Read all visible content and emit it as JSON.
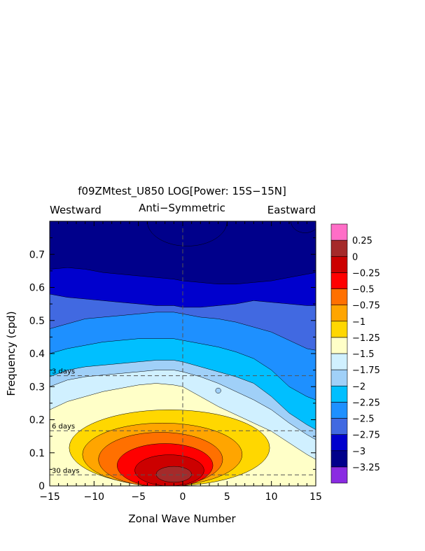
{
  "chart_data": {
    "type": "heatmap",
    "title": "f09ZMtest_U850 LOG[Power: 15S−15N]",
    "subtitle": "Anti−Symmetric",
    "left_label": "Westward",
    "right_label": "Eastward",
    "xlabel": "Zonal Wave Number",
    "ylabel": "Frequency (cpd)",
    "xlim": [
      -15,
      15
    ],
    "ylim": [
      0,
      0.8
    ],
    "xticks": [
      -15,
      -10,
      -5,
      0,
      5,
      10,
      15
    ],
    "xtick_labels": [
      "−15",
      "−10",
      "−5",
      "0",
      "5",
      "10",
      "15"
    ],
    "yticks": [
      0,
      0.1,
      0.2,
      0.3,
      0.4,
      0.5,
      0.6,
      0.7
    ],
    "ytick_labels": [
      "0",
      "0.1",
      "0.2",
      "0.3",
      "0.4",
      "0.5",
      "0.6",
      "0.7"
    ],
    "period_lines": [
      {
        "label": "3 days",
        "frequency": 0.333
      },
      {
        "label": "6 days",
        "frequency": 0.1667
      },
      {
        "label": "30 days",
        "frequency": 0.0333
      }
    ],
    "contour_levels": [
      -3.25,
      -3,
      -2.75,
      -2.5,
      -2.25,
      -2,
      -1.75,
      -1.5,
      -1.25,
      -1,
      -0.75,
      -0.5,
      -0.25,
      0,
      0.25
    ],
    "colorbar_labels": [
      "0.25",
      "0",
      "−0.25",
      "−0.5",
      "−0.75",
      "−1",
      "−1.25",
      "−1.5",
      "−1.75",
      "−2",
      "−2.25",
      "−2.5",
      "−2.75",
      "−3",
      "−3.25"
    ],
    "colors": [
      "#8a2be2",
      "#00008b",
      "#0000cd",
      "#4169e1",
      "#1e90ff",
      "#00bfff",
      "#a0d0f8",
      "#d0f0ff",
      "#ffffc8",
      "#ffd700",
      "#ffa500",
      "#ff7000",
      "#ff0000",
      "#cc0000",
      "#a52a2a",
      "#ff6ec7"
    ],
    "band_boundaries": [
      {
        "level": -1.5,
        "points": [
          [
            -15,
            0.23
          ],
          [
            -13,
            0.255
          ],
          [
            -11,
            0.27
          ],
          [
            -9,
            0.285
          ],
          [
            -7,
            0.295
          ],
          [
            -5,
            0.305
          ],
          [
            -3,
            0.31
          ],
          [
            -1,
            0.305
          ],
          [
            0,
            0.3
          ],
          [
            2,
            0.27
          ],
          [
            4,
            0.24
          ],
          [
            6,
            0.215
          ],
          [
            8,
            0.19
          ],
          [
            10,
            0.165
          ],
          [
            12,
            0.13
          ],
          [
            14,
            0.095
          ],
          [
            15,
            0.08
          ]
        ]
      },
      {
        "level": -1.75,
        "points": [
          [
            -15,
            0.3
          ],
          [
            -13,
            0.32
          ],
          [
            -11,
            0.33
          ],
          [
            -9,
            0.335
          ],
          [
            -7,
            0.34
          ],
          [
            -5,
            0.345
          ],
          [
            -3,
            0.35
          ],
          [
            -1,
            0.35
          ],
          [
            0,
            0.345
          ],
          [
            2,
            0.33
          ],
          [
            4,
            0.31
          ],
          [
            6,
            0.285
          ],
          [
            8,
            0.26
          ],
          [
            10,
            0.23
          ],
          [
            12,
            0.19
          ],
          [
            14,
            0.155
          ],
          [
            15,
            0.14
          ]
        ]
      },
      {
        "level": -2,
        "points": [
          [
            -15,
            0.33
          ],
          [
            -13,
            0.35
          ],
          [
            -11,
            0.36
          ],
          [
            -9,
            0.365
          ],
          [
            -7,
            0.37
          ],
          [
            -5,
            0.375
          ],
          [
            -3,
            0.38
          ],
          [
            -1,
            0.38
          ],
          [
            0,
            0.375
          ],
          [
            2,
            0.36
          ],
          [
            4,
            0.345
          ],
          [
            6,
            0.33
          ],
          [
            8,
            0.31
          ],
          [
            10,
            0.27
          ],
          [
            12,
            0.22
          ],
          [
            14,
            0.185
          ],
          [
            15,
            0.17
          ]
        ]
      },
      {
        "level": -2.25,
        "points": [
          [
            -15,
            0.4
          ],
          [
            -13,
            0.415
          ],
          [
            -11,
            0.425
          ],
          [
            -9,
            0.435
          ],
          [
            -7,
            0.44
          ],
          [
            -5,
            0.445
          ],
          [
            -3,
            0.445
          ],
          [
            -1,
            0.445
          ],
          [
            0,
            0.44
          ],
          [
            2,
            0.43
          ],
          [
            4,
            0.42
          ],
          [
            6,
            0.405
          ],
          [
            8,
            0.385
          ],
          [
            10,
            0.35
          ],
          [
            12,
            0.3
          ],
          [
            14,
            0.27
          ],
          [
            15,
            0.26
          ]
        ]
      },
      {
        "level": -2.5,
        "points": [
          [
            -15,
            0.475
          ],
          [
            -13,
            0.49
          ],
          [
            -11,
            0.505
          ],
          [
            -9,
            0.51
          ],
          [
            -7,
            0.515
          ],
          [
            -5,
            0.52
          ],
          [
            -3,
            0.525
          ],
          [
            -1,
            0.525
          ],
          [
            0,
            0.52
          ],
          [
            2,
            0.51
          ],
          [
            4,
            0.505
          ],
          [
            6,
            0.495
          ],
          [
            8,
            0.48
          ],
          [
            10,
            0.465
          ],
          [
            12,
            0.44
          ],
          [
            14,
            0.415
          ],
          [
            15,
            0.41
          ]
        ]
      },
      {
        "level": -2.75,
        "points": [
          [
            -15,
            0.58
          ],
          [
            -13,
            0.57
          ],
          [
            -11,
            0.565
          ],
          [
            -9,
            0.56
          ],
          [
            -7,
            0.555
          ],
          [
            -5,
            0.55
          ],
          [
            -3,
            0.545
          ],
          [
            -1,
            0.545
          ],
          [
            0,
            0.54
          ],
          [
            2,
            0.54
          ],
          [
            4,
            0.545
          ],
          [
            6,
            0.55
          ],
          [
            8,
            0.56
          ],
          [
            10,
            0.555
          ],
          [
            12,
            0.55
          ],
          [
            14,
            0.545
          ],
          [
            15,
            0.545
          ]
        ]
      },
      {
        "level": -3,
        "points": [
          [
            -15,
            0.655
          ],
          [
            -13,
            0.66
          ],
          [
            -11,
            0.655
          ],
          [
            -9,
            0.645
          ],
          [
            -7,
            0.64
          ],
          [
            -5,
            0.635
          ],
          [
            -3,
            0.63
          ],
          [
            -1,
            0.625
          ],
          [
            0,
            0.62
          ],
          [
            2,
            0.615
          ],
          [
            4,
            0.61
          ],
          [
            6,
            0.61
          ],
          [
            8,
            0.615
          ],
          [
            10,
            0.62
          ],
          [
            12,
            0.63
          ],
          [
            14,
            0.64
          ],
          [
            15,
            0.645
          ]
        ]
      }
    ],
    "blobs": [
      {
        "level": -1.25,
        "cx": -1.5,
        "cy": 0.115,
        "rx": 11.3,
        "ry": 0.115
      },
      {
        "level": -1,
        "cx": -2.3,
        "cy": 0.095,
        "rx": 9.0,
        "ry": 0.095
      },
      {
        "level": -0.75,
        "cx": -2.5,
        "cy": 0.08,
        "rx": 7.0,
        "ry": 0.082
      },
      {
        "level": -0.5,
        "cx": -2.0,
        "cy": 0.062,
        "rx": 5.4,
        "ry": 0.066
      },
      {
        "level": -0.25,
        "cx": -1.5,
        "cy": 0.047,
        "rx": 3.9,
        "ry": 0.047
      },
      {
        "level": 0,
        "cx": -1.0,
        "cy": 0.035,
        "rx": 2.0,
        "ry": 0.024
      },
      {
        "level": -3.25,
        "cx": 0.5,
        "cy": 0.8,
        "rx": 4.5,
        "ry": 0.075
      },
      {
        "level": -3.25,
        "cx": 13.8,
        "cy": 0.8,
        "rx": 1.6,
        "ry": 0.035
      },
      {
        "level": -2,
        "cx": 4.0,
        "cy": 0.288,
        "rx": 0.3,
        "ry": 0.008
      }
    ]
  }
}
